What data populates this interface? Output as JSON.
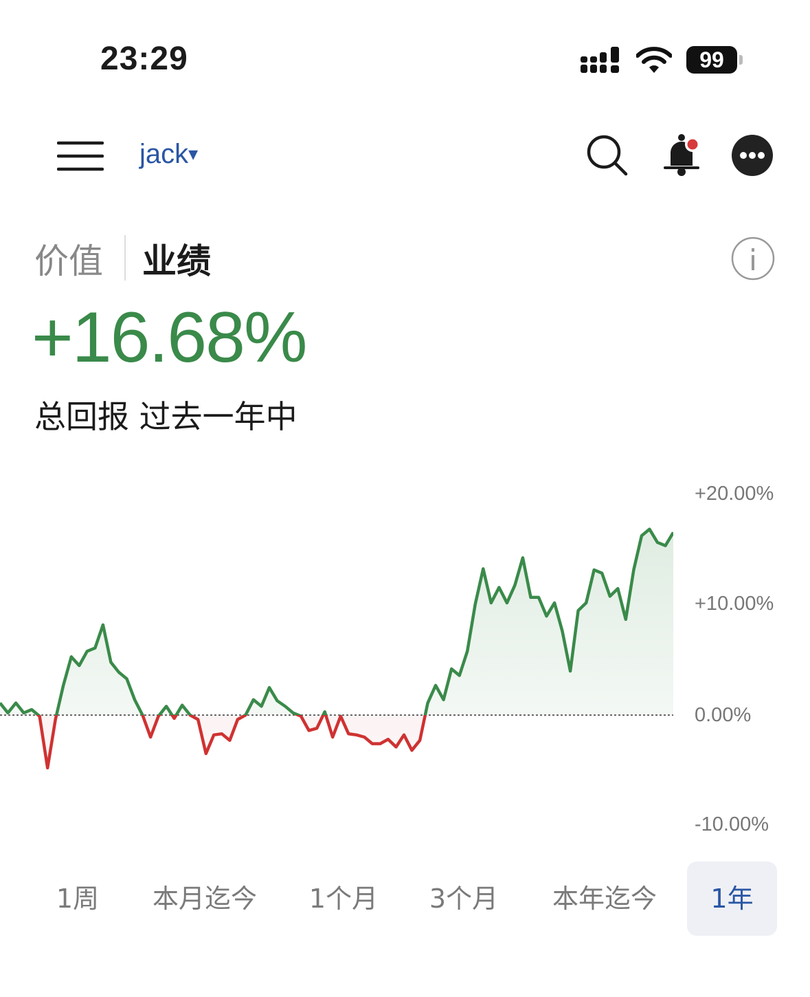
{
  "status_bar": {
    "time": "23:29",
    "battery": "99"
  },
  "header": {
    "account_name": "jack",
    "account_caret": "▾",
    "icons": [
      "menu-icon",
      "search-icon",
      "bell-icon",
      "more-icon"
    ],
    "notification_dot_color": "#d8393a"
  },
  "view_tabs": [
    {
      "label": "价值",
      "selected": false
    },
    {
      "label": "业绩",
      "selected": true
    }
  ],
  "summary": {
    "return_value": "+16.68%",
    "caption": "总回报 过去一年中"
  },
  "colors": {
    "positive": "#3a8a4a",
    "negative": "#cf3232",
    "accent": "#2a56a4"
  },
  "chart_data": {
    "type": "area",
    "baseline": 0,
    "ylim": [
      -10,
      20
    ],
    "y_ticks": [
      "+20.00%",
      "+10.00%",
      "0.00%",
      "-10.00%"
    ],
    "y_tick_values": [
      20,
      10,
      0,
      -10
    ],
    "grid": false,
    "values": [
      1.1,
      0.2,
      1.1,
      0.2,
      0.5,
      -0.1,
      -4.8,
      -0.4,
      2.7,
      5.3,
      4.5,
      5.8,
      6.1,
      8.2,
      4.8,
      3.9,
      3.3,
      1.4,
      0,
      -2.0,
      -0.1,
      0.8,
      -0.3,
      0.9,
      0,
      -0.4,
      -3.5,
      -1.8,
      -1.7,
      -2.3,
      -0.4,
      0,
      1.4,
      0.8,
      2.5,
      1.3,
      0.8,
      0.2,
      -0.1,
      -1.4,
      -1.2,
      0.3,
      -2.0,
      -0.1,
      -1.7,
      -1.8,
      -2.0,
      -2.6,
      -2.6,
      -2.2,
      -2.9,
      -1.8,
      -3.2,
      -2.3,
      1.1,
      2.7,
      1.4,
      4.2,
      3.6,
      5.8,
      10.1,
      13.3,
      10.2,
      11.6,
      10.2,
      11.8,
      14.3,
      10.7,
      10.7,
      9.0,
      10.2,
      7.6,
      4.0,
      9.5,
      10.2,
      13.2,
      12.9,
      10.8,
      11.5,
      8.7,
      13.2,
      16.3,
      16.9,
      15.7,
      15.4,
      16.6
    ]
  },
  "period_tabs": [
    {
      "label": "1周",
      "selected": false
    },
    {
      "label": "本月迄今",
      "selected": false
    },
    {
      "label": "1个月",
      "selected": false
    },
    {
      "label": "3个月",
      "selected": false
    },
    {
      "label": "本年迄今",
      "selected": false
    },
    {
      "label": "1年",
      "selected": true
    }
  ]
}
